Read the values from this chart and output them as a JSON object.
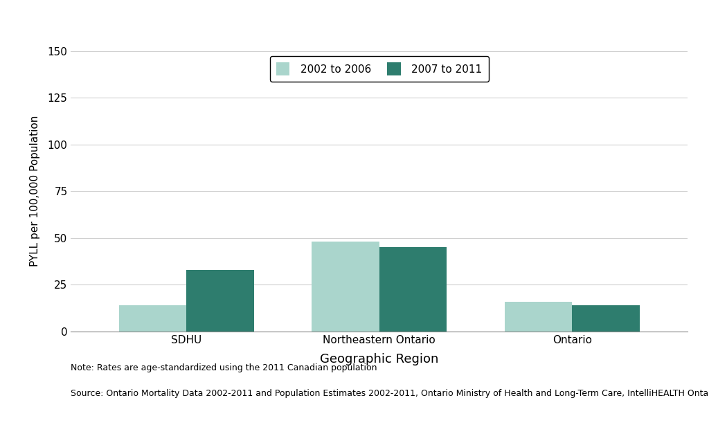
{
  "categories": [
    "SDHU",
    "Northeastern Ontario",
    "Ontario"
  ],
  "values_2002_2006": [
    14,
    48,
    16
  ],
  "values_2007_2011": [
    33,
    45,
    14
  ],
  "color_2002_2006": "#aad5cc",
  "color_2007_2011": "#2e7d6e",
  "legend_label_1": "2002 to 2006",
  "legend_label_2": "2007 to 2011",
  "xlabel": "Geographic Region",
  "ylabel": "PYLL per 100,000 Population",
  "ylim": [
    0,
    150
  ],
  "yticks": [
    0,
    25,
    50,
    75,
    100,
    125,
    150
  ],
  "bar_width": 0.35,
  "note_line1": "Note: Rates are age-standardized using the 2011 Canadian population",
  "note_line2": "Source: Ontario Mortality Data 2002-2011 and Population Estimates 2002-2011, Ontario Ministry of Health and Long-Term Care, IntelliHEALTH Ontario",
  "background_color": "#ffffff",
  "grid_color": "#d0d0d0",
  "xlabel_fontsize": 13,
  "ylabel_fontsize": 11,
  "tick_fontsize": 11,
  "legend_fontsize": 11,
  "note_fontsize": 9
}
